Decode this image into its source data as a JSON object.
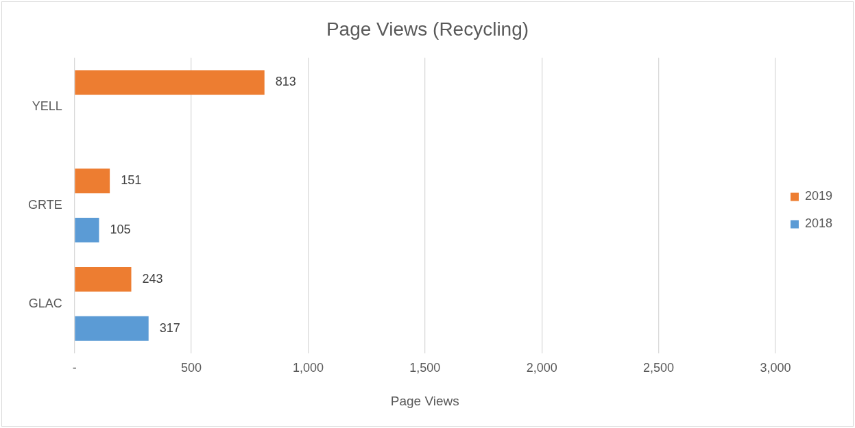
{
  "chart_data": {
    "type": "bar",
    "orientation": "horizontal",
    "title": "Page Views (Recycling)",
    "xlabel": "Page Views",
    "categories": [
      "YELL",
      "GRTE",
      "GLAC"
    ],
    "series": [
      {
        "name": "2019",
        "color": "#ed7d31",
        "values": [
          813,
          151,
          243
        ]
      },
      {
        "name": "2018",
        "color": "#5b9bd5",
        "values": [
          null,
          105,
          317
        ]
      }
    ],
    "xlim": [
      0,
      3000
    ],
    "xticks": [
      {
        "value": 0,
        "label": "-"
      },
      500,
      {
        "value": 1000,
        "label": "1,000"
      },
      {
        "value": 1500,
        "label": "1,500"
      },
      {
        "value": 2000,
        "label": "2,000"
      },
      {
        "value": 2500,
        "label": "2,500"
      },
      {
        "value": 3000,
        "label": "3,000"
      }
    ],
    "grid": "x",
    "legend": "right",
    "data_labels": true
  }
}
